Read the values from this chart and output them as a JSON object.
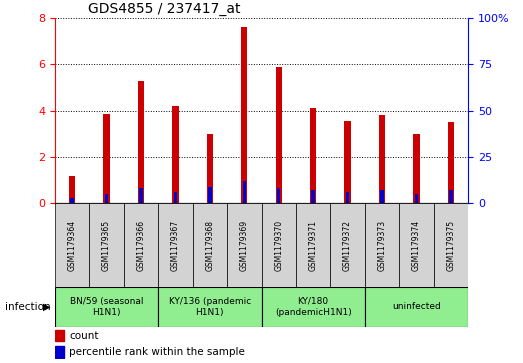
{
  "title": "GDS4855 / 237417_at",
  "samples": [
    "GSM1179364",
    "GSM1179365",
    "GSM1179366",
    "GSM1179367",
    "GSM1179368",
    "GSM1179369",
    "GSM1179370",
    "GSM1179371",
    "GSM1179372",
    "GSM1179373",
    "GSM1179374",
    "GSM1179375"
  ],
  "count_values": [
    1.2,
    3.85,
    5.3,
    4.2,
    3.0,
    7.6,
    5.9,
    4.1,
    3.55,
    3.8,
    3.0,
    3.5
  ],
  "percentile_values": [
    3,
    5,
    8,
    6,
    9,
    12,
    8,
    7,
    6,
    7,
    5,
    7
  ],
  "count_color": "#cc0000",
  "percentile_color": "#0000cc",
  "ylim_left": [
    0,
    8
  ],
  "ylim_right": [
    0,
    100
  ],
  "yticks_left": [
    0,
    2,
    4,
    6,
    8
  ],
  "yticks_right": [
    0,
    25,
    50,
    75,
    100
  ],
  "ytick_labels_right": [
    "0",
    "25",
    "50",
    "75",
    "100%"
  ],
  "groups": [
    {
      "label": "BN/59 (seasonal\nH1N1)",
      "start": 1,
      "end": 3,
      "color": "#90ee90"
    },
    {
      "label": "KY/136 (pandemic\nH1N1)",
      "start": 4,
      "end": 6,
      "color": "#90ee90"
    },
    {
      "label": "KY/180\n(pandemicH1N1)",
      "start": 7,
      "end": 9,
      "color": "#90ee90"
    },
    {
      "label": "uninfected",
      "start": 10,
      "end": 12,
      "color": "#90ee90"
    }
  ],
  "sample_cell_color": "#d3d3d3",
  "legend_count_label": "count",
  "legend_percentile_label": "percentile rank within the sample",
  "infection_label": "infection",
  "count_bar_width": 0.18,
  "pct_bar_width": 0.1,
  "background_color": "#ffffff"
}
